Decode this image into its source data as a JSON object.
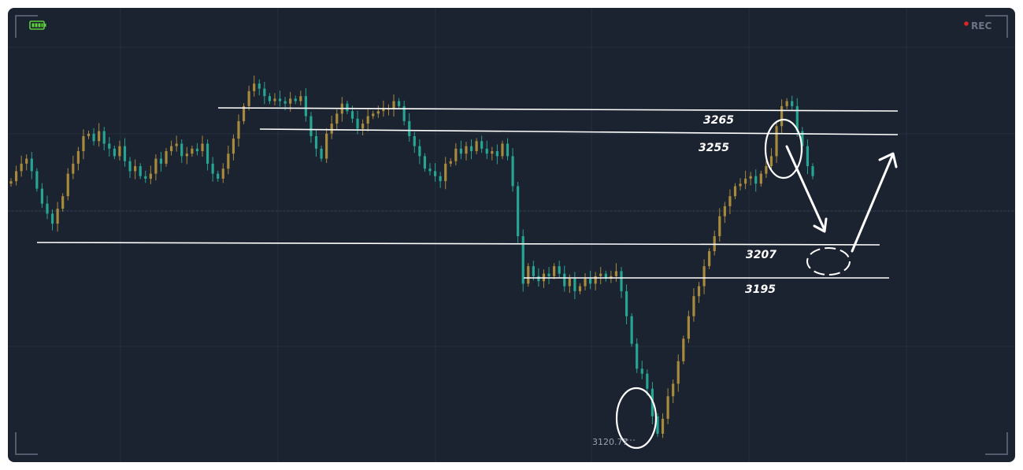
{
  "recorder": {
    "rec_label": "REC",
    "battery_icon": "battery-icon",
    "rec_dot_color": "#e02424"
  },
  "colors": {
    "bull": "#a88a3c",
    "bear": "#27a593",
    "background": "#1b2230",
    "annotation": "#ffffff"
  },
  "chart_data": {
    "type": "candlestick",
    "title": "",
    "xlabel": "",
    "ylabel": "",
    "ylim": [
      3115,
      3285
    ],
    "grid": true,
    "low_label": "3120.77",
    "levels": [
      {
        "label": "3265",
        "value": 3265
      },
      {
        "label": "3255",
        "value": 3255
      },
      {
        "label": "3207",
        "value": 3207
      },
      {
        "label": "3195",
        "value": 3195
      }
    ],
    "close_path": [
      3222,
      3226,
      3229,
      3231,
      3226,
      3219,
      3213,
      3209,
      3205,
      3211,
      3216,
      3225,
      3229,
      3234,
      3240,
      3241,
      3238,
      3242,
      3237,
      3235,
      3232,
      3236,
      3230,
      3226,
      3228,
      3224,
      3223,
      3225,
      3231,
      3229,
      3234,
      3236,
      3237,
      3232,
      3233,
      3235,
      3234,
      3237,
      3229,
      3225,
      3223,
      3227,
      3233,
      3239,
      3246,
      3252,
      3258,
      3261,
      3259,
      3256,
      3254,
      3255,
      3254,
      3253,
      3255,
      3254,
      3256,
      3248,
      3240,
      3235,
      3231,
      3241,
      3245,
      3249,
      3253,
      3250,
      3247,
      3243,
      3245,
      3248,
      3249,
      3250,
      3251,
      3251,
      3254,
      3252,
      3246,
      3240,
      3236,
      3232,
      3227,
      3226,
      3224,
      3222,
      3229,
      3230,
      3235,
      3233,
      3236,
      3234,
      3238,
      3235,
      3233,
      3234,
      3232,
      3237,
      3232,
      3220,
      3200,
      3181,
      3188,
      3184,
      3182,
      3185,
      3184,
      3188,
      3185,
      3180,
      3183,
      3178,
      3180,
      3183,
      3181,
      3184,
      3185,
      3183,
      3184,
      3186,
      3178,
      3168,
      3157,
      3147,
      3145,
      3139,
      3128,
      3121,
      3127,
      3136,
      3141,
      3150,
      3159,
      3168,
      3176,
      3180,
      3188,
      3194,
      3200,
      3208,
      3212,
      3216,
      3220,
      3221,
      3223,
      3224,
      3221,
      3225,
      3228,
      3232,
      3244,
      3252,
      3254,
      3252,
      3242,
      3236,
      3228,
      3224
    ]
  }
}
